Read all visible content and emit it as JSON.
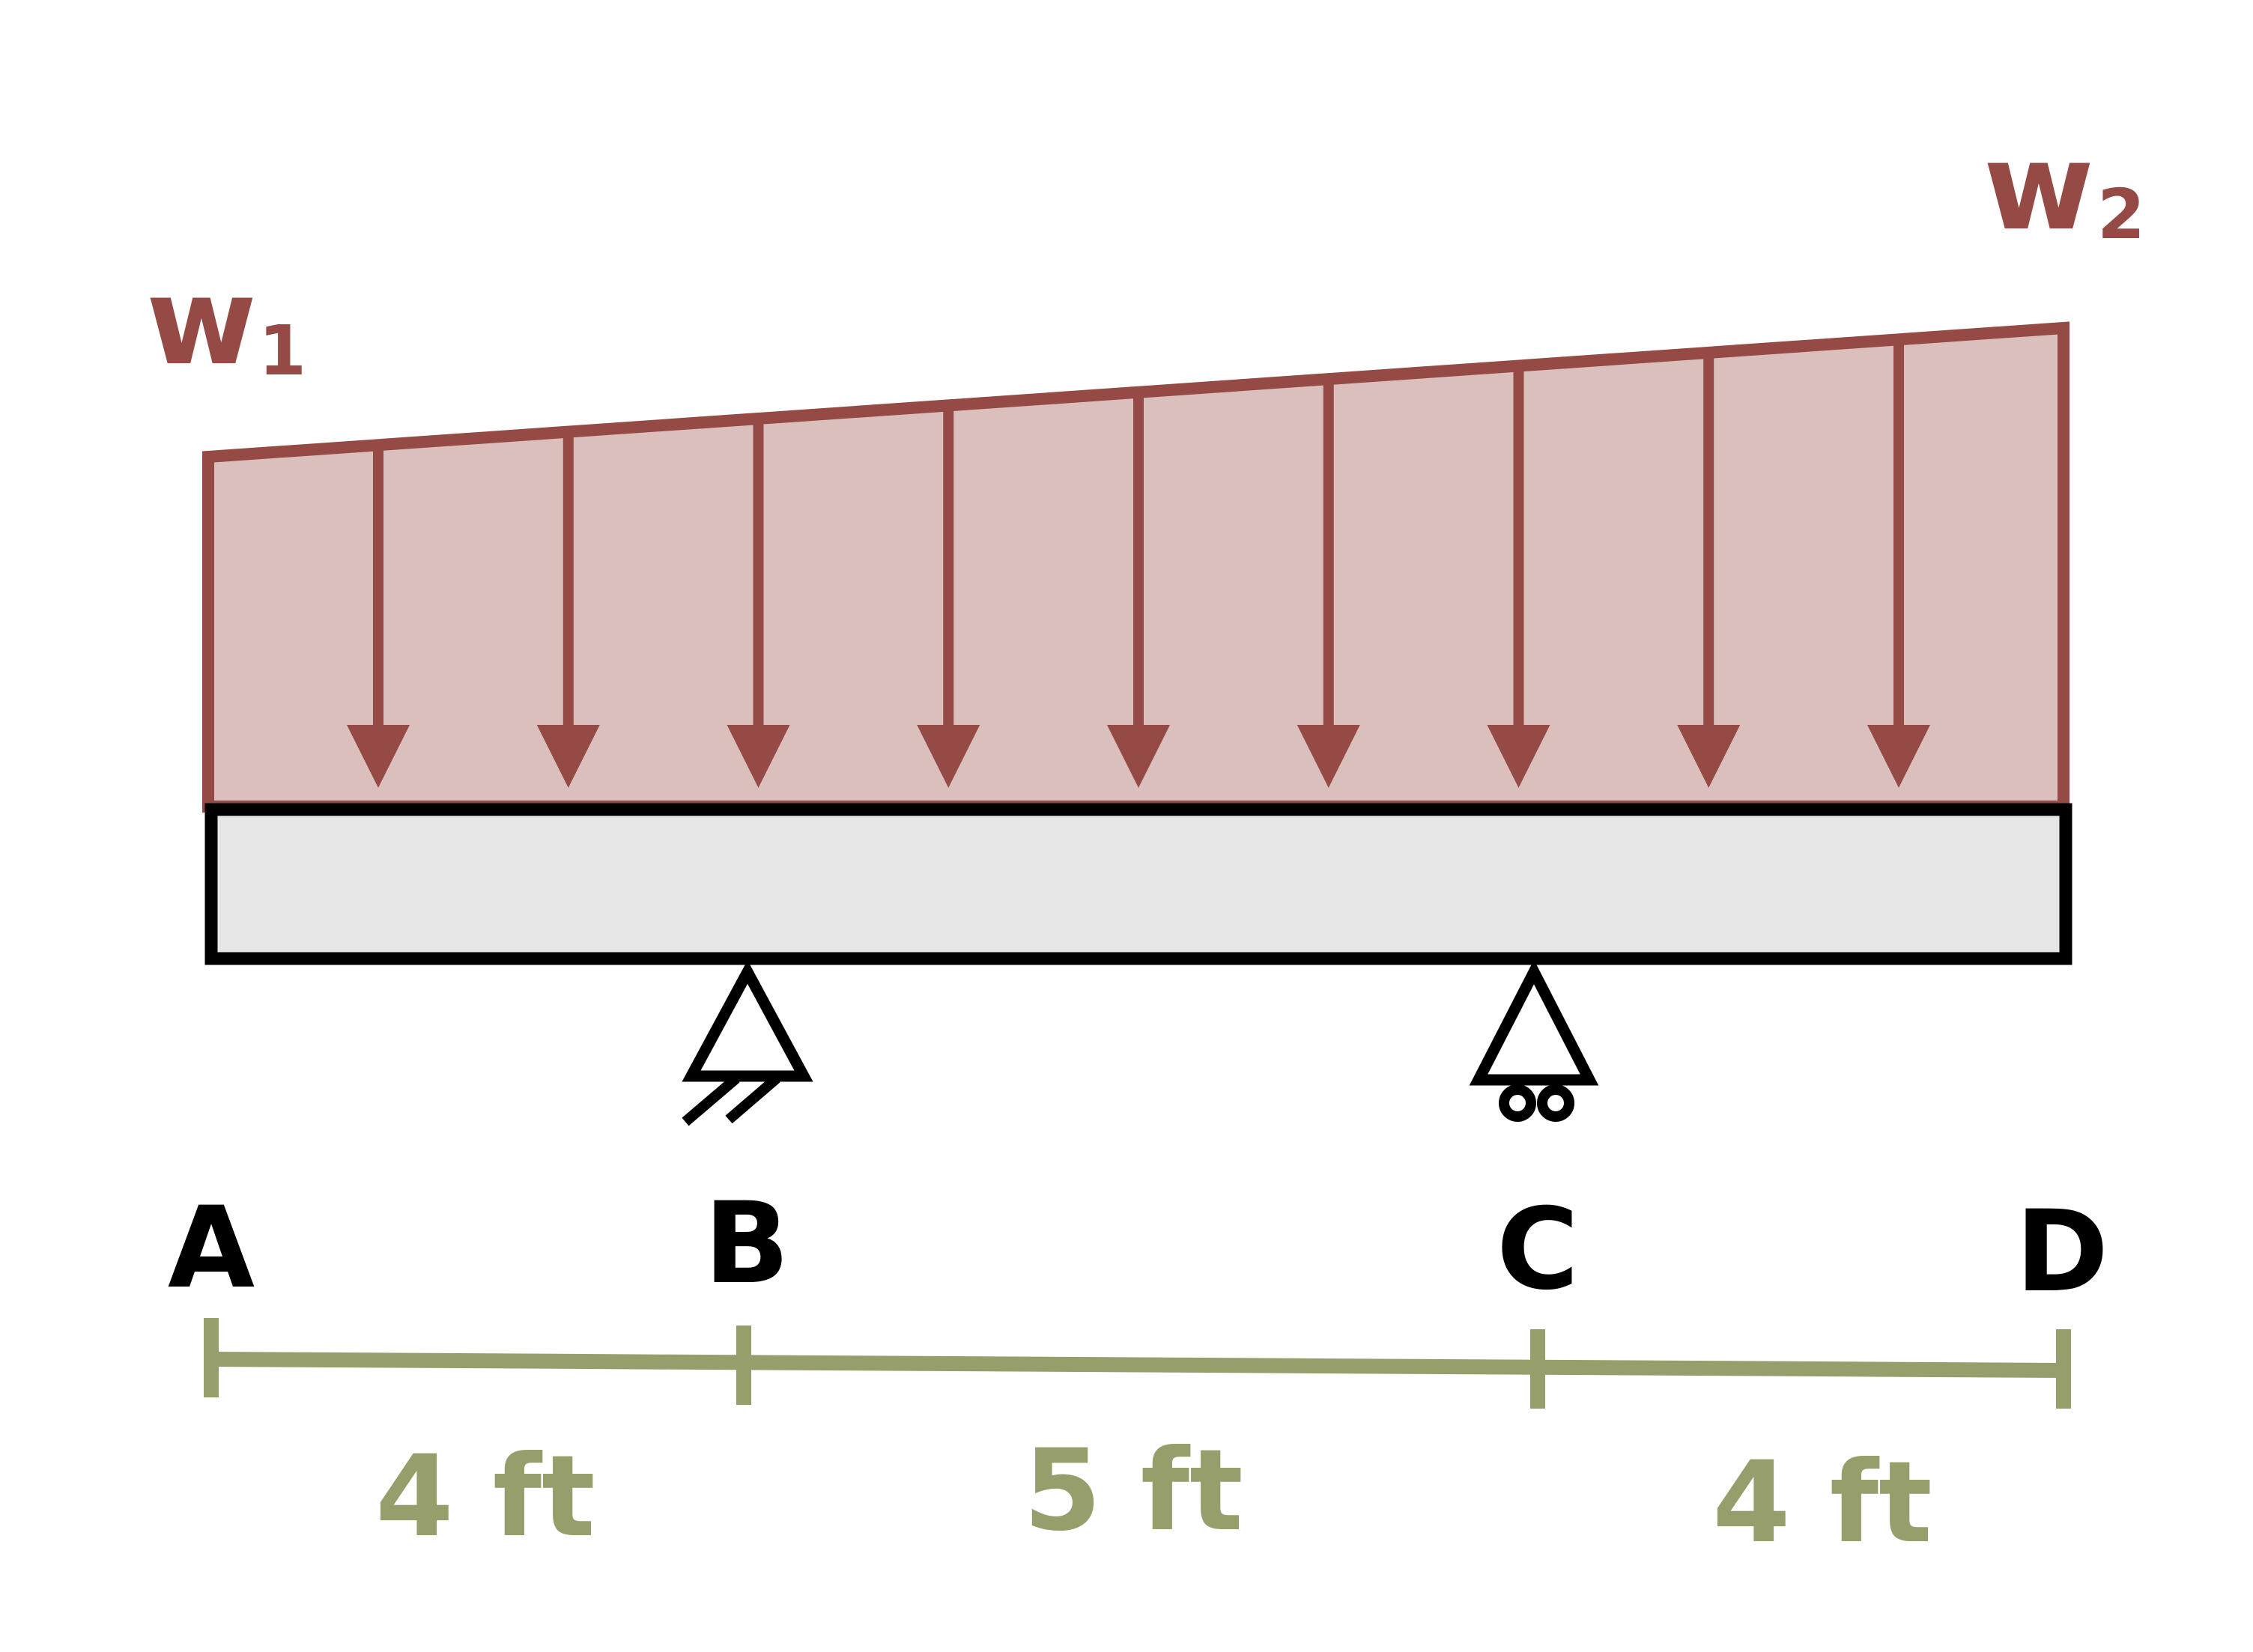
{
  "colors": {
    "load": "#954a45",
    "load_fill": "#dbbfbd",
    "beam_fill": "#e6e6e6",
    "beam_stroke": "#000000",
    "dimension": "#969e6b",
    "point_label": "#000000"
  },
  "loads": {
    "w1_main": "w",
    "w1_sub": "1",
    "w2_main": "w",
    "w2_sub": "2",
    "arrow_count": 9
  },
  "points": {
    "a": "A",
    "b": "B",
    "c": "C",
    "d": "D"
  },
  "supports": {
    "b": "pin-support-icon",
    "c": "roller-support-icon"
  },
  "dimensions": {
    "ab": "4 ft",
    "bc": "5 ft",
    "cd": "4 ft"
  }
}
